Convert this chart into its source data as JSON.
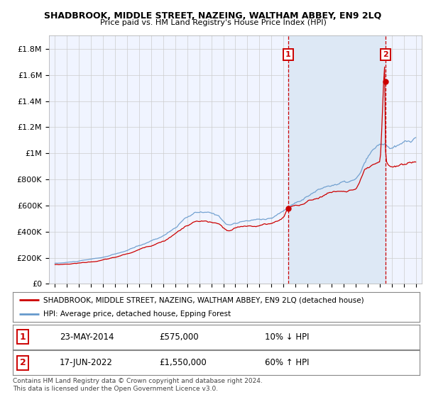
{
  "title": "SHADBROOK, MIDDLE STREET, NAZEING, WALTHAM ABBEY, EN9 2LQ",
  "subtitle": "Price paid vs. HM Land Registry's House Price Index (HPI)",
  "ylabel_ticks": [
    "£0",
    "£200K",
    "£400K",
    "£600K",
    "£800K",
    "£1M",
    "£1.2M",
    "£1.4M",
    "£1.6M",
    "£1.8M"
  ],
  "ytick_values": [
    0,
    200000,
    400000,
    600000,
    800000,
    1000000,
    1200000,
    1400000,
    1600000,
    1800000
  ],
  "ylim": [
    0,
    1900000
  ],
  "sale1_year": 2014.38,
  "sale1_price": 575000,
  "sale2_year": 2022.46,
  "sale2_price": 1550000,
  "property_color": "#cc0000",
  "hpi_color": "#6699cc",
  "shade_color": "#dde8f5",
  "legend_property": "SHADBROOK, MIDDLE STREET, NAZEING, WALTHAM ABBEY, EN9 2LQ (detached house)",
  "legend_hpi": "HPI: Average price, detached house, Epping Forest",
  "sale1_date": "23-MAY-2014",
  "sale1_pct": "10% ↓ HPI",
  "sale2_date": "17-JUN-2022",
  "sale2_pct": "60% ↑ HPI",
  "footnote": "Contains HM Land Registry data © Crown copyright and database right 2024.\nThis data is licensed under the Open Government Licence v3.0.",
  "background_color": "#ffffff",
  "plot_bg_color": "#f0f4ff",
  "grid_color": "#cccccc"
}
